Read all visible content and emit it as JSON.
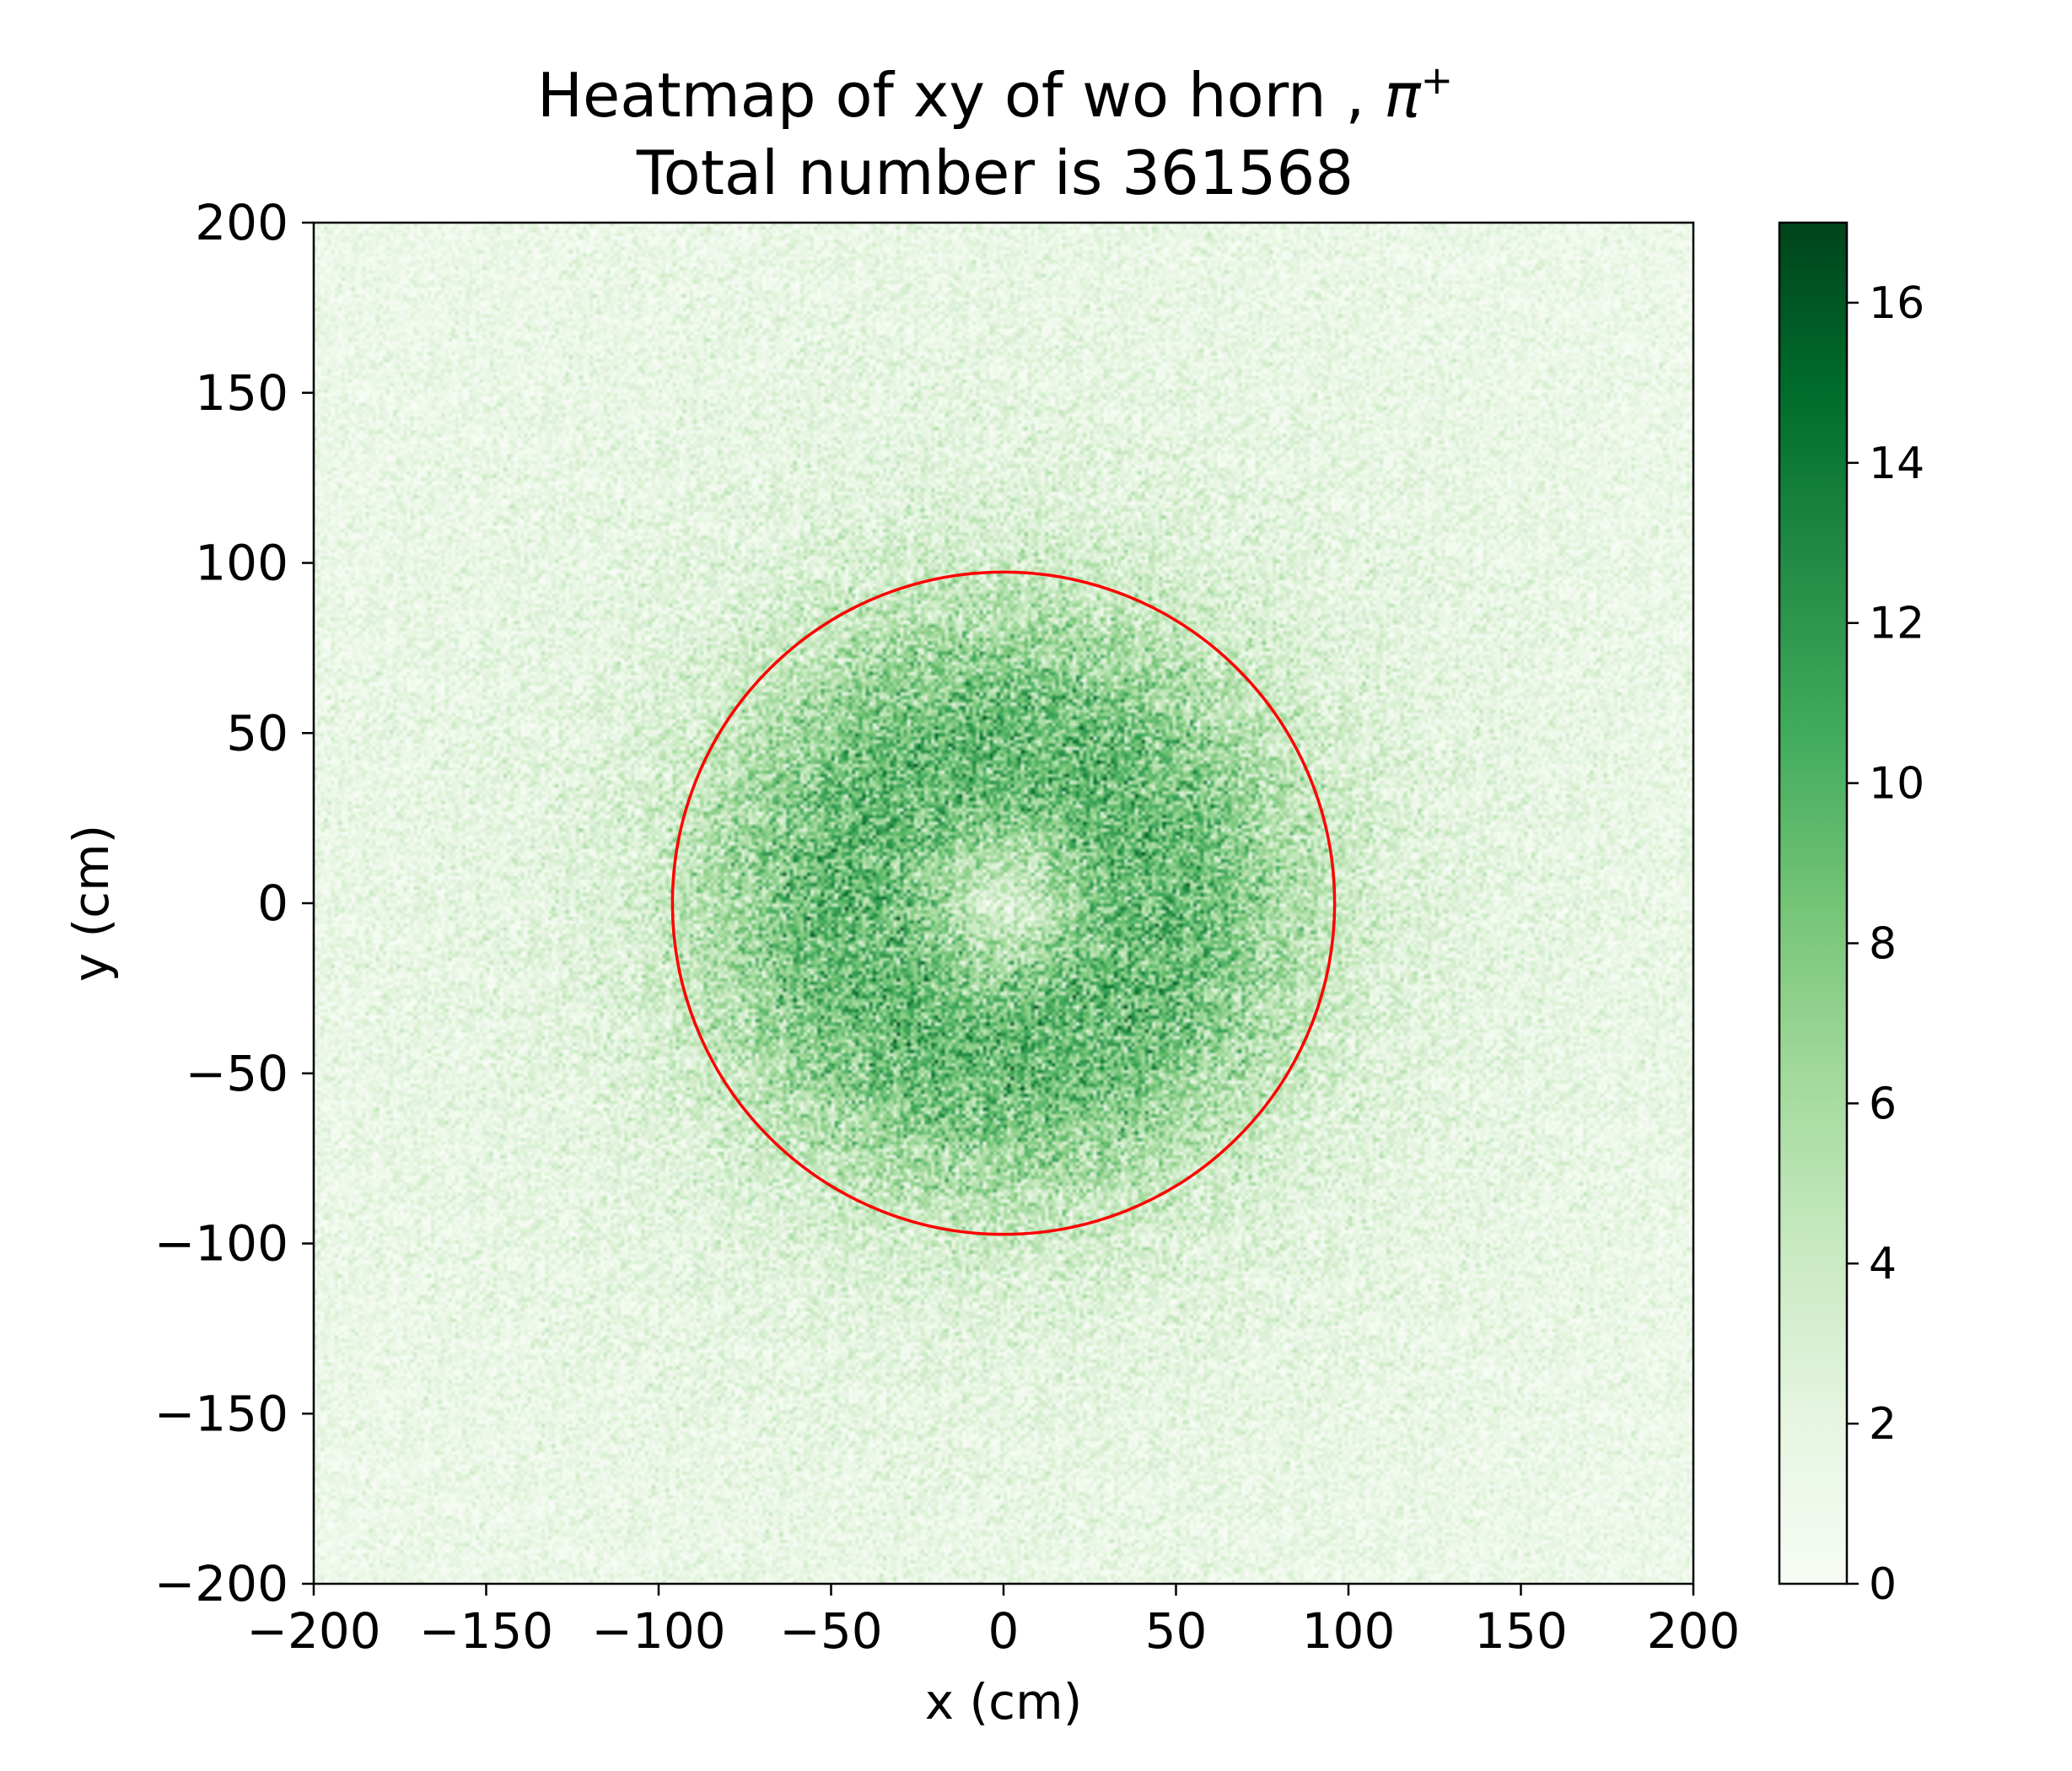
{
  "chart_data": {
    "type": "heatmap",
    "title_line1": "Heatmap of xy of wo horn , ",
    "title_symbol": "π",
    "title_superscript": "+",
    "title_line2": "Total number is 361568",
    "xlabel": "x (cm)",
    "ylabel": "y (cm)",
    "xlim": [
      -200,
      200
    ],
    "ylim": [
      -200,
      200
    ],
    "x_ticks": [
      -200,
      -150,
      -100,
      -50,
      0,
      50,
      100,
      150,
      200
    ],
    "x_tick_labels": [
      "−200",
      "−150",
      "−100",
      "−50",
      "0",
      "50",
      "100",
      "150",
      "200"
    ],
    "y_ticks": [
      -200,
      -150,
      -100,
      -50,
      0,
      50,
      100,
      150,
      200
    ],
    "y_tick_labels": [
      "−200",
      "−150",
      "−100",
      "−50",
      "0",
      "50",
      "100",
      "150",
      "200"
    ],
    "colorbar": {
      "colormap": "Greens",
      "range": [
        0,
        17
      ],
      "ticks": [
        0,
        2,
        4,
        6,
        8,
        10,
        12,
        14,
        16
      ],
      "tick_labels": [
        "0",
        "2",
        "4",
        "6",
        "8",
        "10",
        "12",
        "14",
        "16"
      ]
    },
    "bins": 400,
    "density_model": {
      "center": [
        0,
        0
      ],
      "ring_peak_radius": 45,
      "ring_peak_value": 8,
      "center_dip_value": 3,
      "edge_value": 1.5
    },
    "overlay_circle": {
      "center": [
        0,
        0
      ],
      "radius": 96,
      "color": "#ff0000"
    },
    "grid": false,
    "colors": {
      "cmap_low": "#f7fcf5",
      "cmap_high": "#00441b"
    }
  }
}
